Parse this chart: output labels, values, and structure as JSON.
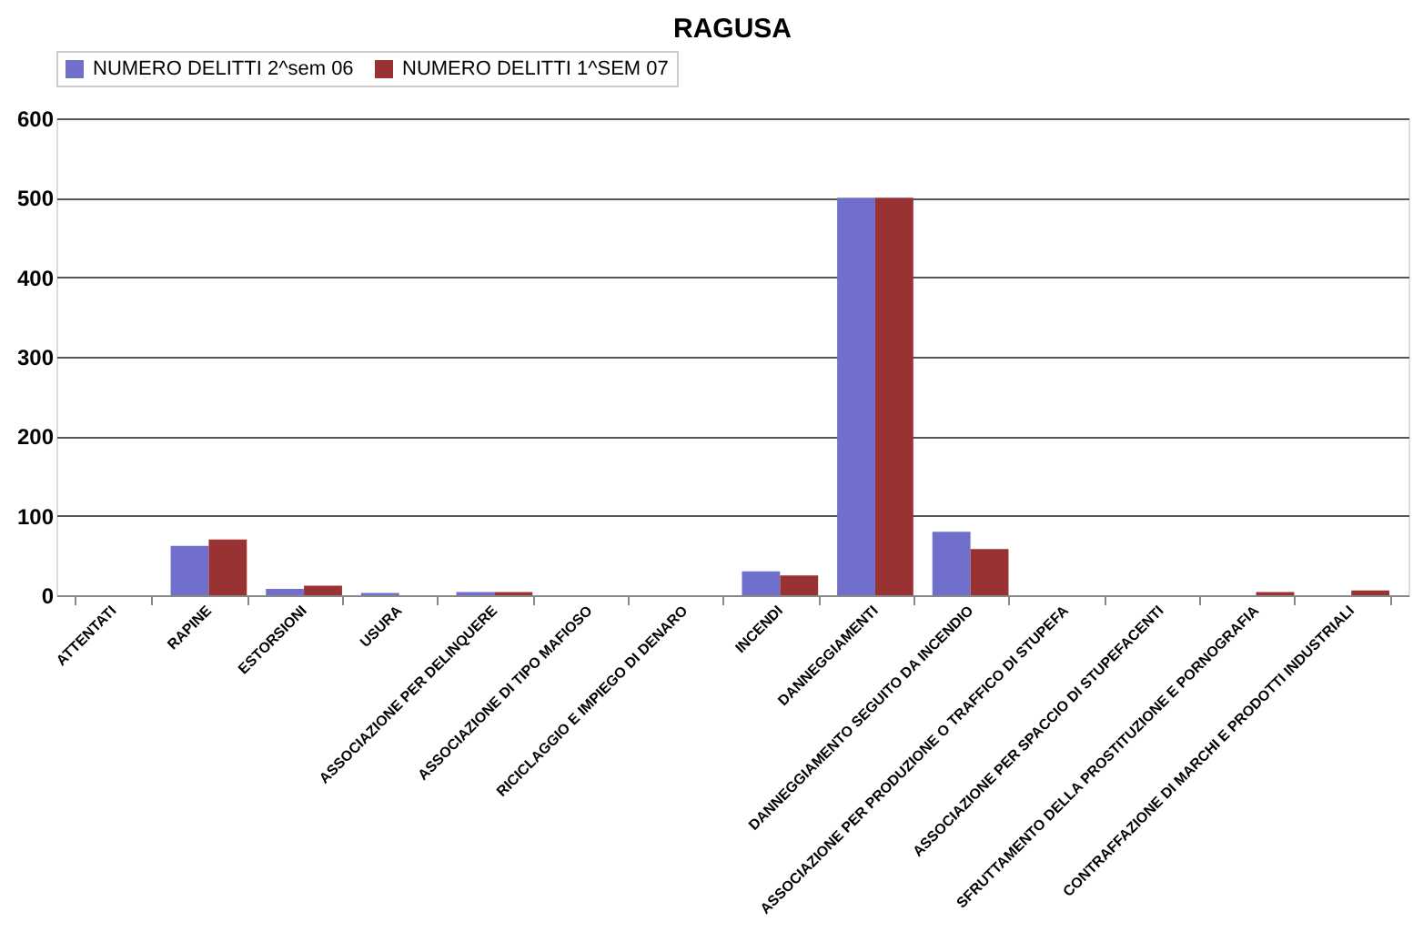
{
  "chart_data": {
    "type": "bar",
    "title": "RAGUSA",
    "categories": [
      "ATTENTATI",
      "RAPINE",
      "ESTORSIONI",
      "USURA",
      "ASSOCIAZIONE PER DELINQUERE",
      "ASSOCIAZIONE DI TIPO MAFIOSO",
      "RICICLAGGIO E IMPIEGO DI DENARO",
      "INCENDI",
      "DANNEGGIAMENTI",
      "DANNEGGIAMENTO SEGUITO DA INCENDIO",
      "ASSOCIAZIONE PER PRODUZIONE O TRAFFICO DI STUPEFA",
      "ASSOCIAZIONE PER SPACCIO DI STUPEFACENTI",
      "SFRUTTAMENTO DELLA PROSTITUZIONE E PORNOGRAFIA",
      "CONTRAFFAZIONE DI MARCHI E PRODOTTI INDUSTRIALI"
    ],
    "series": [
      {
        "name": "NUMERO DELITTI 2^sem 06",
        "color": "#7070cc",
        "values": [
          0,
          62,
          8,
          3,
          4,
          0,
          0,
          30,
          500,
          80,
          0,
          0,
          0,
          0
        ]
      },
      {
        "name": "NUMERO DELITTI 1^SEM 07",
        "color": "#993333",
        "values": [
          0,
          70,
          12,
          0,
          4,
          0,
          0,
          25,
          500,
          58,
          0,
          0,
          4,
          6
        ]
      }
    ],
    "ylim": [
      0,
      600
    ],
    "yticks": [
      0,
      100,
      200,
      300,
      400,
      500,
      600
    ],
    "grid": "y",
    "legend": "top"
  }
}
